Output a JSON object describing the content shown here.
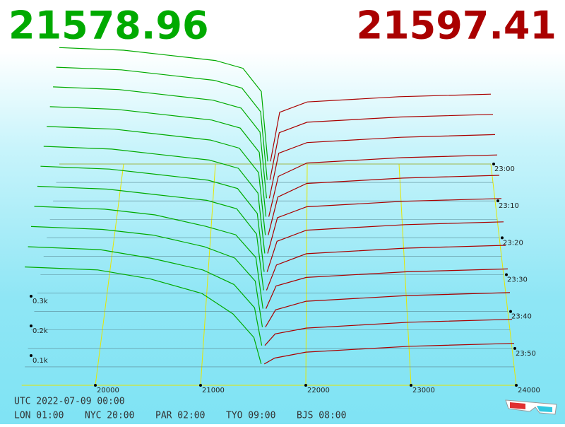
{
  "chart_data": {
    "type": "depth3d",
    "bid_price": 21578.96,
    "ask_price": 21597.41,
    "bid_color": "#00aa00",
    "ask_color": "#aa0000",
    "grid_color": "#e6e600",
    "x": [
      19300,
      20000,
      20500,
      21000,
      21300,
      21500,
      21570,
      21600,
      21700,
      22000,
      23000,
      24000
    ],
    "xlim": [
      19300,
      24000
    ],
    "xticks": [
      20000,
      21000,
      22000,
      23000,
      24000
    ],
    "ylim": [
      0,
      0.5
    ],
    "yticks": [
      {
        "value": 0.1,
        "label": "0.1k"
      },
      {
        "value": 0.2,
        "label": "0.2k"
      },
      {
        "value": 0.3,
        "label": "0.3k"
      }
    ],
    "zlim": [
      0,
      60
    ],
    "zticks": [
      {
        "value": 0,
        "label": "23:00"
      },
      {
        "value": 10,
        "label": "23:10"
      },
      {
        "value": 20,
        "label": "23:20"
      },
      {
        "value": 30,
        "label": "23:30"
      },
      {
        "value": 40,
        "label": "23:40"
      },
      {
        "value": 50,
        "label": "23:50"
      }
    ],
    "series": [
      {
        "z": 0,
        "bids": [
          0.45,
          0.44,
          0.42,
          0.4,
          0.37,
          0.28,
          0.01,
          null,
          null,
          null,
          null,
          null
        ],
        "asks": [
          null,
          null,
          null,
          null,
          null,
          null,
          null,
          0.01,
          0.2,
          0.24,
          0.26,
          0.27
        ]
      },
      {
        "z": 5,
        "bids": [
          0.44,
          0.43,
          0.41,
          0.39,
          0.36,
          0.27,
          0.01,
          null,
          null,
          null,
          null,
          null
        ],
        "asks": [
          null,
          null,
          null,
          null,
          null,
          null,
          null,
          0.01,
          0.19,
          0.23,
          0.25,
          0.26
        ]
      },
      {
        "z": 10,
        "bids": [
          0.43,
          0.42,
          0.4,
          0.38,
          0.35,
          0.26,
          0.01,
          null,
          null,
          null,
          null,
          null
        ],
        "asks": [
          null,
          null,
          null,
          null,
          null,
          null,
          null,
          0.01,
          0.18,
          0.22,
          0.24,
          0.25
        ]
      },
      {
        "z": 15,
        "bids": [
          0.42,
          0.41,
          0.39,
          0.37,
          0.34,
          0.25,
          0.01,
          null,
          null,
          null,
          null,
          null
        ],
        "asks": [
          null,
          null,
          null,
          null,
          null,
          null,
          null,
          0.01,
          0.16,
          0.21,
          0.23,
          0.24
        ]
      },
      {
        "z": 20,
        "bids": [
          0.41,
          0.4,
          0.38,
          0.36,
          0.33,
          0.24,
          0.01,
          null,
          null,
          null,
          null,
          null
        ],
        "asks": [
          null,
          null,
          null,
          null,
          null,
          null,
          null,
          0.01,
          0.15,
          0.2,
          0.22,
          0.23
        ]
      },
      {
        "z": 25,
        "bids": [
          0.4,
          0.39,
          0.37,
          0.35,
          0.32,
          0.23,
          0.01,
          null,
          null,
          null,
          null,
          null
        ],
        "asks": [
          null,
          null,
          null,
          null,
          null,
          null,
          null,
          0.01,
          0.14,
          0.18,
          0.2,
          0.21
        ]
      },
      {
        "z": 30,
        "bids": [
          0.39,
          0.38,
          0.36,
          0.34,
          0.31,
          0.22,
          0.01,
          null,
          null,
          null,
          null,
          null
        ],
        "asks": [
          null,
          null,
          null,
          null,
          null,
          null,
          null,
          0.01,
          0.12,
          0.16,
          0.18,
          0.19
        ]
      },
      {
        "z": 35,
        "bids": [
          0.38,
          0.37,
          0.35,
          0.33,
          0.3,
          0.21,
          0.01,
          null,
          null,
          null,
          null,
          null
        ],
        "asks": [
          null,
          null,
          null,
          null,
          null,
          null,
          null,
          0.01,
          0.1,
          0.14,
          0.16,
          0.17
        ]
      },
      {
        "z": 40,
        "bids": [
          0.37,
          0.36,
          0.34,
          0.3,
          0.27,
          0.19,
          0.01,
          null,
          null,
          null,
          null,
          null
        ],
        "asks": [
          null,
          null,
          null,
          null,
          null,
          null,
          null,
          0.01,
          0.09,
          0.12,
          0.14,
          0.15
        ]
      },
      {
        "z": 45,
        "bids": [
          0.36,
          0.35,
          0.33,
          0.29,
          0.25,
          0.17,
          0.01,
          null,
          null,
          null,
          null,
          null
        ],
        "asks": [
          null,
          null,
          null,
          null,
          null,
          null,
          null,
          0.01,
          0.07,
          0.1,
          0.12,
          0.13
        ]
      },
      {
        "z": 50,
        "bids": [
          0.35,
          0.34,
          0.31,
          0.27,
          0.22,
          0.14,
          0.01,
          null,
          null,
          null,
          null,
          null
        ],
        "asks": [
          null,
          null,
          null,
          null,
          null,
          null,
          null,
          0.01,
          0.05,
          0.07,
          0.09,
          0.1
        ]
      },
      {
        "z": 55,
        "bids": [
          0.34,
          0.33,
          0.3,
          0.25,
          0.18,
          0.1,
          0.01,
          null,
          null,
          null,
          null,
          null
        ],
        "asks": [
          null,
          null,
          null,
          null,
          null,
          null,
          null,
          0.01,
          0.03,
          0.05,
          0.07,
          0.08
        ]
      }
    ]
  },
  "clock": {
    "utc": "UTC 2022-07-09 00:00",
    "zones": [
      "LON 01:00",
      "NYC 20:00",
      "PAR 02:00",
      "TYO 09:00",
      "BJS 08:00"
    ]
  }
}
